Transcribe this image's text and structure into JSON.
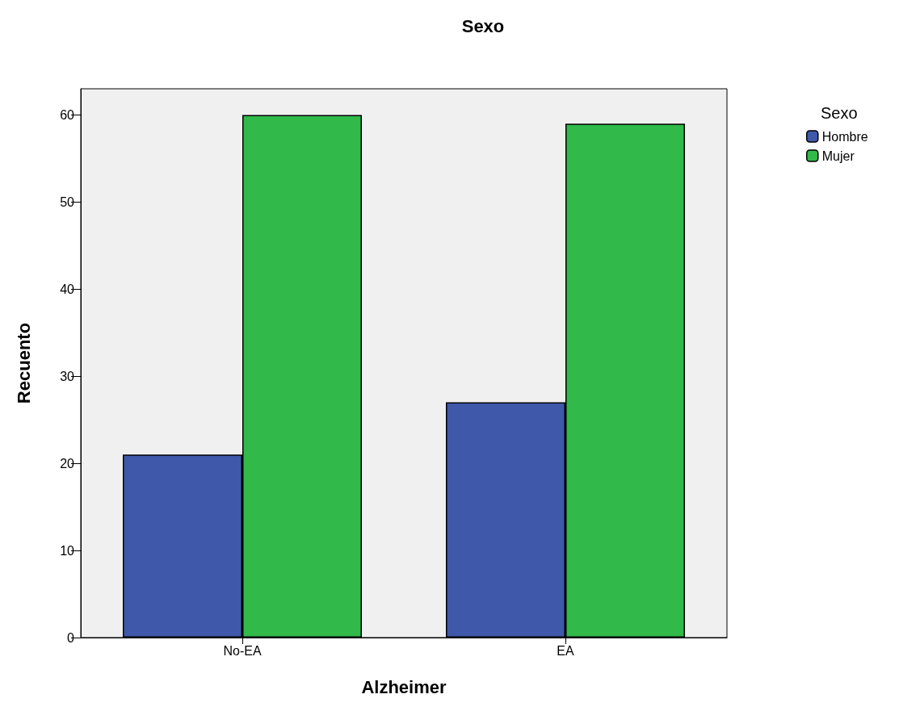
{
  "chart_data": {
    "type": "bar",
    "title": "Sexo",
    "xlabel": "Alzheimer",
    "ylabel": "Recuento",
    "legend_title": "Sexo",
    "categories": [
      "No-EA",
      "EA"
    ],
    "series": [
      {
        "name": "Hombre",
        "color": "#3f58aa",
        "values": [
          21,
          27
        ]
      },
      {
        "name": "Mujer",
        "color": "#31b94a",
        "values": [
          60,
          59
        ]
      }
    ],
    "ylim": [
      0,
      63
    ],
    "yticks": [
      0,
      10,
      20,
      30,
      40,
      50,
      60
    ],
    "grid": false,
    "legend": "top right"
  }
}
